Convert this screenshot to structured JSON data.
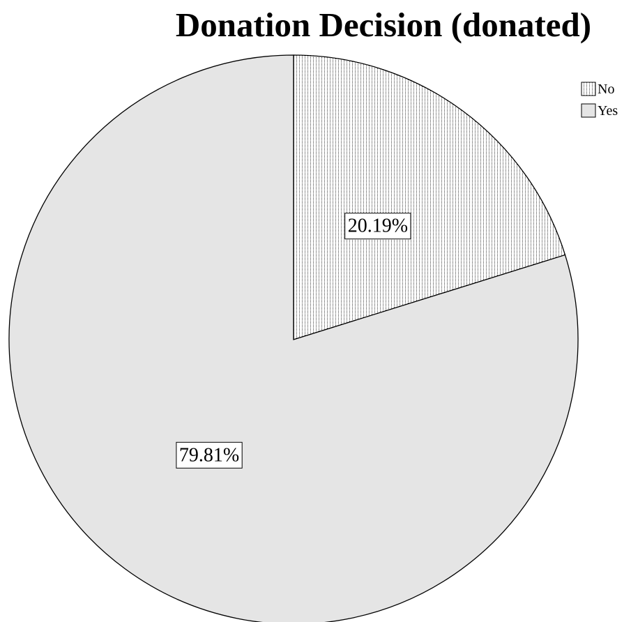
{
  "chart_data": {
    "type": "pie",
    "title": "Donation Decision (donated)",
    "categories": [
      "No",
      "Yes"
    ],
    "values": [
      20.19,
      79.81
    ],
    "value_labels": [
      "20.19%",
      "79.81%"
    ],
    "start_angle_deg": 0,
    "direction": "clockwise",
    "legend": {
      "placement": "top-right",
      "entries": [
        "No",
        "Yes"
      ]
    },
    "fills": {
      "No": "dotted-pattern",
      "Yes": "#e5e5e5"
    },
    "outline_color": "#000000"
  }
}
